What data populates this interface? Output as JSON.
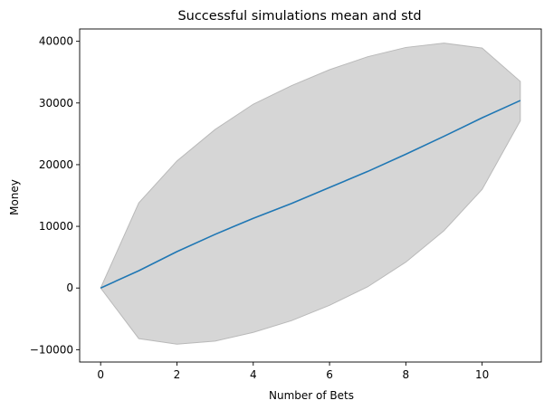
{
  "chart_data": {
    "type": "line",
    "title": "Successful simulations mean and std",
    "xlabel": "Number of Bets",
    "ylabel": "Money",
    "xlim": [
      -0.55,
      11.55
    ],
    "ylim": [
      -12000,
      42000
    ],
    "xticks": [
      0,
      2,
      4,
      6,
      8,
      10
    ],
    "xtick_labels": [
      "0",
      "2",
      "4",
      "6",
      "8",
      "10"
    ],
    "yticks": [
      -10000,
      0,
      10000,
      20000,
      30000,
      40000
    ],
    "ytick_labels": [
      "−10000",
      "0",
      "10000",
      "20000",
      "30000",
      "40000"
    ],
    "x": [
      0,
      1,
      2,
      3,
      4,
      5,
      6,
      7,
      8,
      9,
      10,
      11
    ],
    "series": [
      {
        "name": "mean",
        "color": "#1f77b4",
        "values": [
          0,
          2800,
          5900,
          8700,
          11300,
          13700,
          16300,
          18900,
          21700,
          24600,
          27600,
          30400
        ]
      }
    ],
    "band": {
      "name": "std",
      "color": "#d6d6d6",
      "edge_color": "#b9b9b9",
      "upper": [
        0,
        13800,
        20600,
        25700,
        29800,
        32800,
        35400,
        37500,
        39000,
        39700,
        38900,
        33500
      ],
      "lower": [
        0,
        -8200,
        -9100,
        -8600,
        -7200,
        -5300,
        -2800,
        200,
        4200,
        9300,
        16000,
        27100
      ]
    },
    "grid": false,
    "legend": "none"
  }
}
